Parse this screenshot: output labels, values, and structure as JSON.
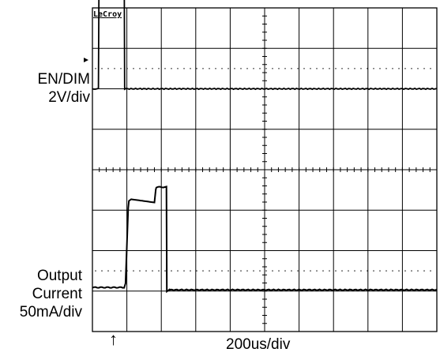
{
  "chart_data": {
    "type": "line",
    "brand": "LeCroy",
    "timebase": "200us/div",
    "trigger_marker": "↑",
    "x_range_us": [
      0,
      2000
    ],
    "grid": true,
    "channels": [
      {
        "label_lines": [
          "EN/DIM",
          "2V/div"
        ],
        "scale": "2V/div",
        "unit": "V",
        "divisions": [
          4,
          0
        ],
        "y_range": [
          0,
          8
        ],
        "points": [
          [
            0,
            0
          ],
          [
            35,
            0
          ],
          [
            38,
            5.3
          ],
          [
            185,
            5.3
          ],
          [
            187,
            0
          ],
          [
            2000,
            0
          ]
        ]
      },
      {
        "label_lines": [
          "Output",
          "Current",
          "50mA/div"
        ],
        "scale": "50mA/div",
        "unit": "mA",
        "divisions": [
          4,
          0
        ],
        "y_range": [
          0,
          200
        ],
        "points": [
          [
            0,
            7
          ],
          [
            185,
            7
          ],
          [
            192,
            12
          ],
          [
            208,
            105
          ],
          [
            212,
            114
          ],
          [
            225,
            116
          ],
          [
            360,
            112
          ],
          [
            368,
            128
          ],
          [
            372,
            131
          ],
          [
            430,
            131
          ],
          [
            432,
            2
          ],
          [
            445,
            4
          ],
          [
            2000,
            4
          ]
        ]
      }
    ]
  }
}
